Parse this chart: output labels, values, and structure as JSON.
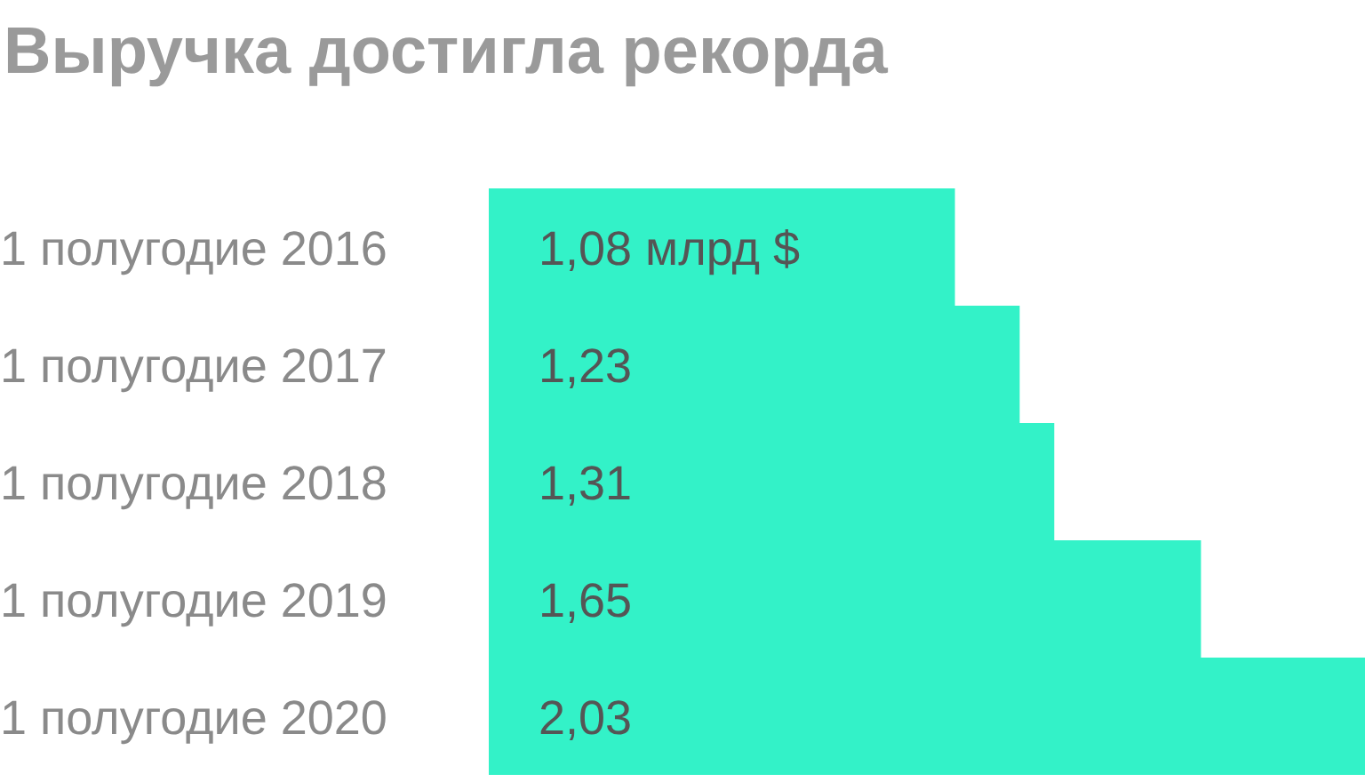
{
  "chart_data": {
    "type": "bar",
    "orientation": "horizontal",
    "title": "Выручка достигла рекорда",
    "categories": [
      "1 полугодие 2016",
      "1 полугодие 2017",
      "1 полугодие 2018",
      "1 полугодие 2019",
      "1 полугодие 2020"
    ],
    "values": [
      1.08,
      1.23,
      1.31,
      1.65,
      2.03
    ],
    "value_labels": [
      "1,08 млрд $",
      "1,23",
      "1,31",
      "1,65",
      "2,03"
    ],
    "color": "#33f2c8",
    "tick_labels": "y",
    "legend": false,
    "grid": false
  }
}
